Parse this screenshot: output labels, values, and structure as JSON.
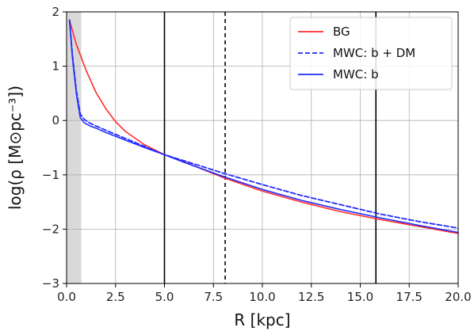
{
  "chart_data": {
    "type": "line",
    "xlabel": "R [kpc]",
    "ylabel": "log(ρ [M⊙pc⁻³])",
    "xlim": [
      0,
      20
    ],
    "ylim": [
      -3,
      2
    ],
    "x_ticks": [
      "0.0",
      "2.5",
      "5.0",
      "7.5",
      "10.0",
      "12.5",
      "15.0",
      "17.5",
      "20.0"
    ],
    "y_ticks": [
      "−3",
      "−2",
      "−1",
      "0",
      "1",
      "2"
    ],
    "grid": true,
    "legend_position": "top-right",
    "shaded_region_x": [
      0,
      0.75
    ],
    "vertical_lines": [
      {
        "x": 5.0,
        "style": "solid",
        "color": "#000000"
      },
      {
        "x": 8.1,
        "style": "dashed",
        "color": "#000000"
      },
      {
        "x": 15.8,
        "style": "solid",
        "color": "#000000"
      }
    ],
    "series": [
      {
        "name": "BG",
        "color": "#ff2a2a",
        "style": "solid",
        "x": [
          0.15,
          0.5,
          1.0,
          1.5,
          2.0,
          2.5,
          3.0,
          4.0,
          5.0,
          6.0,
          8.0,
          10.0,
          12.0,
          14.0,
          16.0,
          18.0,
          20.0
        ],
        "y": [
          1.85,
          1.4,
          0.92,
          0.52,
          0.22,
          -0.02,
          -0.2,
          -0.45,
          -0.63,
          -0.76,
          -1.05,
          -1.3,
          -1.5,
          -1.68,
          -1.82,
          -1.95,
          -2.08
        ]
      },
      {
        "name": "MWC: b + DM",
        "color": "#1f2bff",
        "style": "dashed",
        "x": [
          0.15,
          0.3,
          0.5,
          0.7,
          0.9,
          1.2,
          1.5,
          2.0,
          3.0,
          4.0,
          5.0,
          6.0,
          8.0,
          10.0,
          12.0,
          14.0,
          16.0,
          18.0,
          20.0
        ],
        "y": [
          1.85,
          1.2,
          0.55,
          0.12,
          0.02,
          -0.05,
          -0.1,
          -0.18,
          -0.33,
          -0.48,
          -0.63,
          -0.74,
          -0.97,
          -1.18,
          -1.38,
          -1.55,
          -1.72,
          -1.86,
          -1.98
        ]
      },
      {
        "name": "MWC: b",
        "color": "#1f2bff",
        "style": "solid",
        "x": [
          0.15,
          0.3,
          0.5,
          0.7,
          0.9,
          1.2,
          1.5,
          2.0,
          3.0,
          4.0,
          5.0,
          6.0,
          8.0,
          10.0,
          12.0,
          14.0,
          16.0,
          18.0,
          20.0
        ],
        "y": [
          1.85,
          1.15,
          0.5,
          0.05,
          -0.04,
          -0.1,
          -0.14,
          -0.22,
          -0.36,
          -0.5,
          -0.63,
          -0.77,
          -1.03,
          -1.27,
          -1.47,
          -1.64,
          -1.79,
          -1.93,
          -2.06
        ]
      }
    ]
  }
}
